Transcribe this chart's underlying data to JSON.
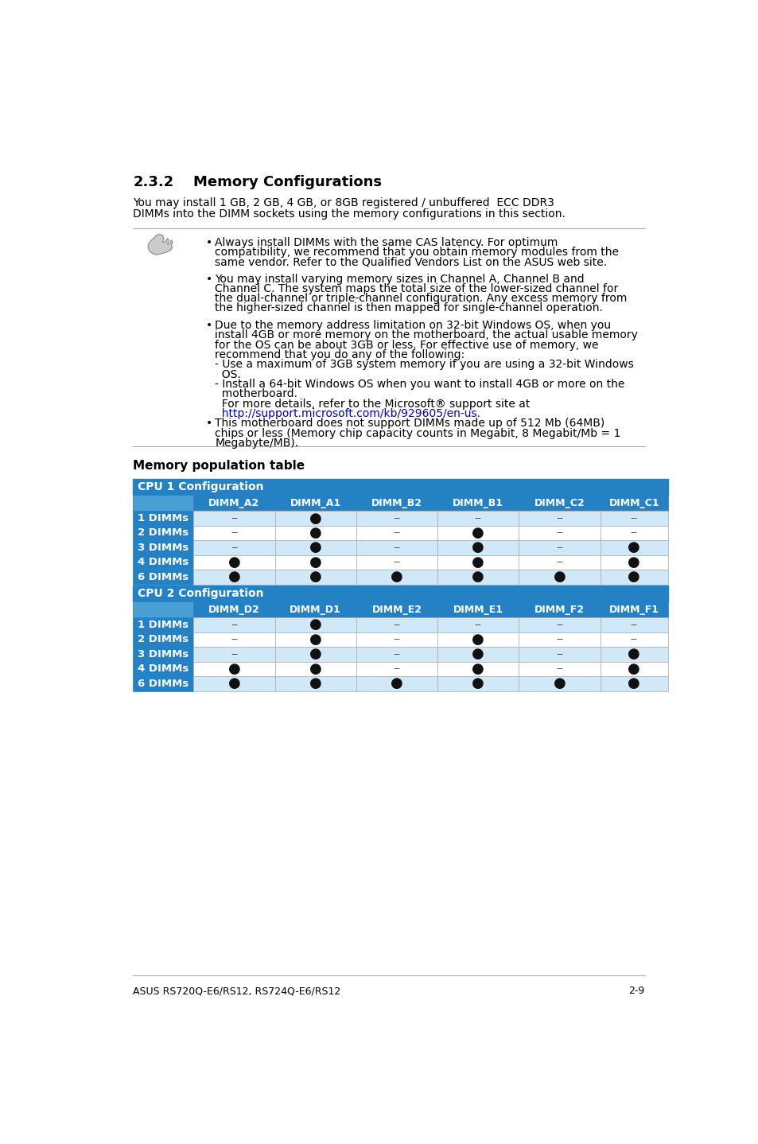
{
  "page_bg": "#ffffff",
  "section_number": "2.3.2",
  "section_title": "Memory Configurations",
  "intro_line1": "You may install 1 GB, 2 GB, 4 GB, or 8GB registered / unbuffered  ECC DDR3",
  "intro_line2": "DIMMs into the DIMM sockets using the memory configurations in this section.",
  "b1_lines": [
    "Always install DIMMs with the same CAS latency. For optimum",
    "compatibility, we recommend that you obtain memory modules from the",
    "same vendor. Refer to the Qualified Vendors List on the ASUS web site."
  ],
  "b2_lines": [
    "You may install varying memory sizes in Channel A, Channel B and",
    "Channel C. The system maps the total size of the lower-sized channel for",
    "the dual-channel or triple-channel configuration. Any excess memory from",
    "the higher-sized channel is then mapped for single-channel operation."
  ],
  "b3_lines": [
    "Due to the memory address limitation on 32-bit Windows OS, when you",
    "install 4GB or more memory on the motherboard, the actual usable memory",
    "for the OS can be about 3GB or less. For effective use of memory, we",
    "recommend that you do any of the following:",
    "- Use a maximum of 3GB system memory if you are using a 32-bit Windows",
    "  OS.",
    "- Install a 64-bit Windows OS when you want to install 4GB or more on the",
    "  motherboard.",
    "  For more details, refer to the Microsoft® support site at",
    "  http://support.microsoft.com/kb/929605/en-us."
  ],
  "b3_link_index": 9,
  "b4_lines": [
    "This motherboard does not support DIMMs made up of 512 Mb (64MB)",
    "chips or less (Memory chip capacity counts in Megabit, 8 Megabit/Mb = 1",
    "Megabyte/MB)."
  ],
  "table_title": "Memory population table",
  "header_bg": "#2381c4",
  "header_light_bg": "#4a9fd4",
  "alt_row_bg": "#d0e8f8",
  "white_row_bg": "#ffffff",
  "table_border_color": "#2381c4",
  "cpu1_config": "CPU 1 Configuration",
  "cpu2_config": "CPU 2 Configuration",
  "cpu1_headers": [
    "",
    "DIMM_A2",
    "DIMM_A1",
    "DIMM_B2",
    "DIMM_B1",
    "DIMM_C2",
    "DIMM_C1"
  ],
  "cpu2_headers": [
    "",
    "DIMM_D2",
    "DIMM_D1",
    "DIMM_E2",
    "DIMM_E1",
    "DIMM_F2",
    "DIMM_F1"
  ],
  "row_labels": [
    "1 DIMMs",
    "2 DIMMs",
    "3 DIMMs",
    "4 DIMMs",
    "6 DIMMs"
  ],
  "cpu1_data": [
    [
      "--",
      "●",
      "--",
      "--",
      "--",
      "--"
    ],
    [
      "--",
      "●",
      "--",
      "●",
      "--",
      "--"
    ],
    [
      "--",
      "●",
      "--",
      "●",
      "--",
      "●"
    ],
    [
      "●",
      "●",
      "--",
      "●",
      "--",
      "●"
    ],
    [
      "●",
      "●",
      "●",
      "●",
      "●",
      "●"
    ]
  ],
  "cpu2_data": [
    [
      "--",
      "●",
      "--",
      "--",
      "--",
      "--"
    ],
    [
      "--",
      "●",
      "--",
      "●",
      "--",
      "--"
    ],
    [
      "--",
      "●",
      "--",
      "●",
      "--",
      "●"
    ],
    [
      "●",
      "●",
      "--",
      "●",
      "--",
      "●"
    ],
    [
      "●",
      "●",
      "●",
      "●",
      "●",
      "●"
    ]
  ],
  "footer_text": "ASUS RS720Q-E6/RS12, RS724Q-E6/RS12",
  "footer_page": "2-9",
  "link_color": "#0000cc",
  "text_color": "#000000"
}
